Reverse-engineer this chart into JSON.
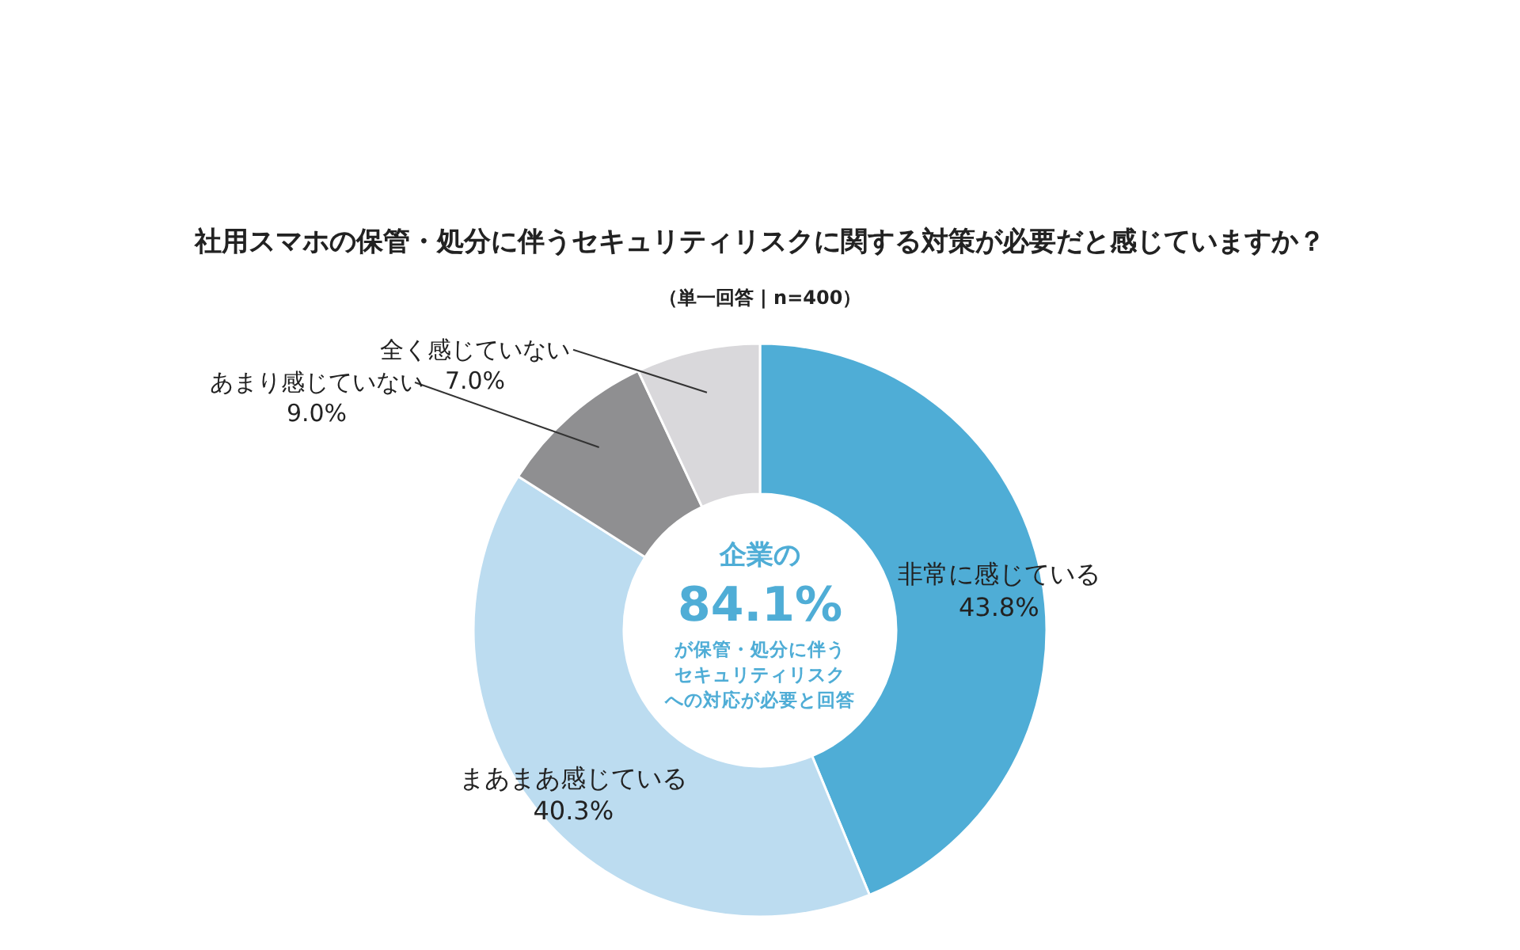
{
  "chart_data": {
    "type": "donut",
    "title": "社用スマホの保管・処分に伴うセキュリティリスクに関する対策が必要だと感じていますか？",
    "subtitle": "（単一回答 | n=400）",
    "categories": [
      "非常に感じている",
      "まあまあ感じている",
      "あまり感じていない",
      "全く感じていない"
    ],
    "values": [
      43.8,
      40.3,
      9.0,
      7.0
    ],
    "value_labels": [
      "43.8%",
      "40.3%",
      "9.0%",
      "7.0%"
    ],
    "colors": [
      "#4fadd6",
      "#bcdcf0",
      "#8f8f91",
      "#d9d8db"
    ],
    "annotations": [
      "企業の",
      "84.1%",
      "が保管・処分に伴う",
      "セキュリティリスク",
      "への対応が必要と回答"
    ]
  }
}
